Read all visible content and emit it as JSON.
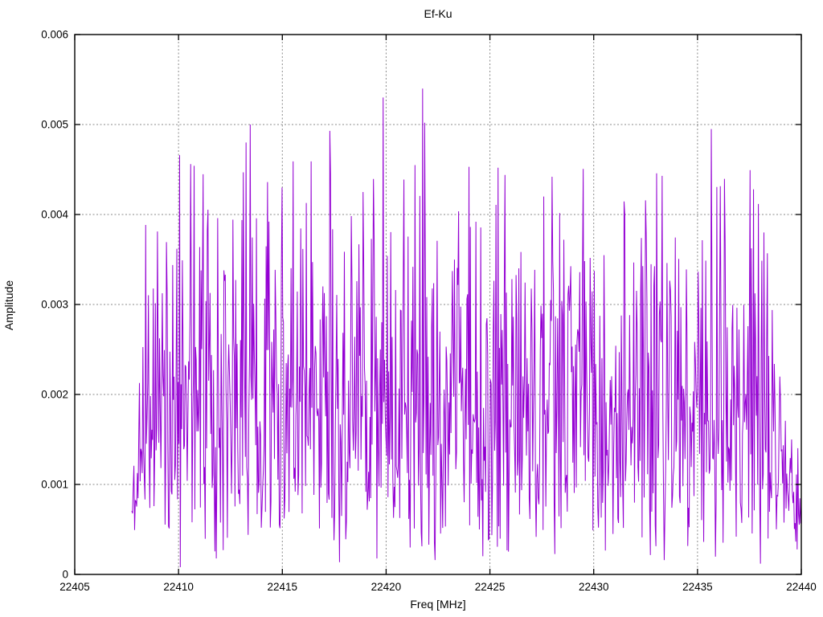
{
  "figure": {
    "background": "#ffffff"
  },
  "chart_data": {
    "type": "line",
    "title": "Ef-Ku",
    "xlabel": "Freq [MHz]",
    "ylabel": "Amplitude",
    "xlim": [
      22405,
      22440
    ],
    "ylim": [
      0,
      0.006
    ],
    "x_ticks": [
      22405,
      22410,
      22415,
      22420,
      22425,
      22430,
      22435,
      22440
    ],
    "x_tick_labels": [
      "22405",
      "22410",
      "22415",
      "22420",
      "22425",
      "22430",
      "22435",
      "22440"
    ],
    "y_ticks": [
      0,
      0.001,
      0.002,
      0.003,
      0.004,
      0.005,
      0.006
    ],
    "y_tick_labels": [
      "0",
      "0.001",
      "0.002",
      "0.003",
      "0.004",
      "0.005",
      "0.006"
    ],
    "grid": true,
    "grid_style": "dashed",
    "grid_color": "#8a8a8a",
    "border_color": "#000000",
    "line_color": "#9400d3",
    "legend": "none",
    "series": [
      {
        "name": "Ef-Ku",
        "description": "dense noise-like amplitude spectrum; vertical comb of ~1000 samples",
        "x_start": 22407.75,
        "x_end": 22440.0,
        "n_points": 968,
        "seed": 421337,
        "distribution": "rayleigh",
        "sigma": 0.00155,
        "mean_amplitude": 0.00194,
        "min_amplitude": 8e-05,
        "max_amplitude": 0.0054,
        "random_peak_cap": 0.0046,
        "edge_taper": {
          "left_end": 22408.4,
          "left_min": 0.45,
          "right_start": 22438.4,
          "right_min": 0.3
        },
        "notable_peaks": [
          {
            "freq": 22410.05,
            "amp": 0.00466
          },
          {
            "freq": 22410.6,
            "amp": 0.00456
          },
          {
            "freq": 22411.9,
            "amp": 0.00396
          },
          {
            "freq": 22413.25,
            "amp": 0.0048
          },
          {
            "freq": 22413.45,
            "amp": 0.005
          },
          {
            "freq": 22414.3,
            "amp": 0.00436
          },
          {
            "freq": 22415.0,
            "amp": 0.0043
          },
          {
            "freq": 22416.4,
            "amp": 0.00459
          },
          {
            "freq": 22417.3,
            "amp": 0.00493
          },
          {
            "freq": 22418.9,
            "amp": 0.00425
          },
          {
            "freq": 22419.85,
            "amp": 0.0053
          },
          {
            "freq": 22421.75,
            "amp": 0.0054
          },
          {
            "freq": 22421.85,
            "amp": 0.00502
          },
          {
            "freq": 22424.0,
            "amp": 0.00453
          },
          {
            "freq": 22425.4,
            "amp": 0.00452
          },
          {
            "freq": 22427.6,
            "amp": 0.0042
          },
          {
            "freq": 22431.5,
            "amp": 0.004
          },
          {
            "freq": 22433.3,
            "amp": 0.00443
          },
          {
            "freq": 22435.65,
            "amp": 0.00495
          },
          {
            "freq": 22437.7,
            "amp": 0.00428
          },
          {
            "freq": 22438.2,
            "amp": 0.0038
          }
        ]
      }
    ]
  }
}
